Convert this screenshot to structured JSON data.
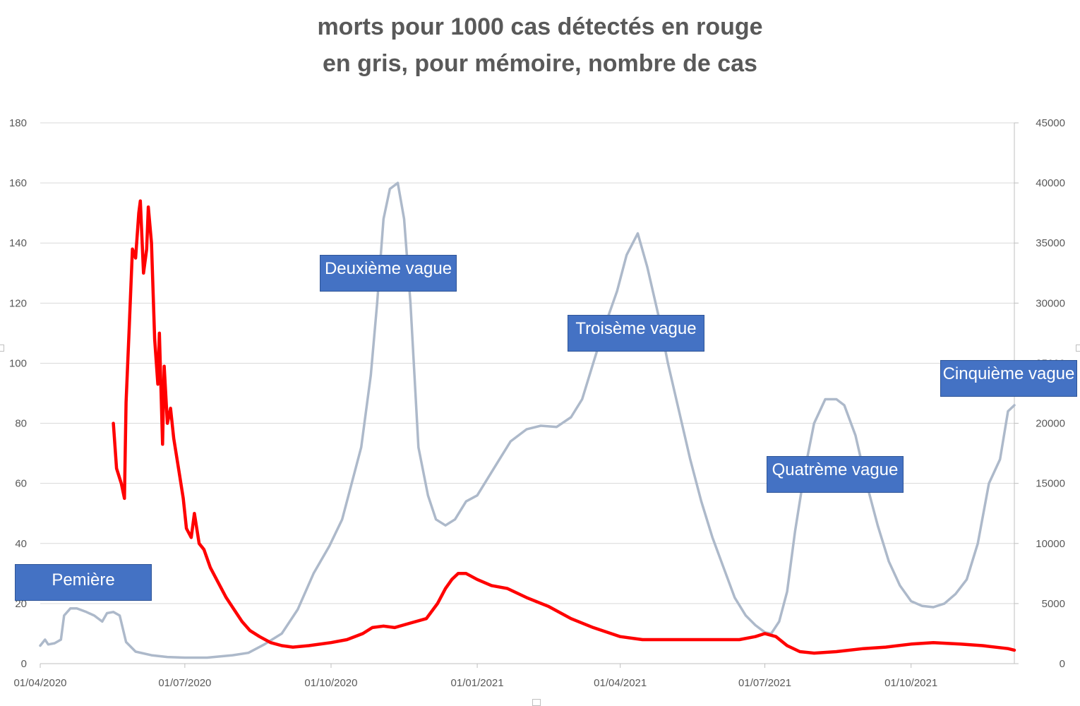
{
  "chart_data": {
    "type": "line",
    "title": "morts pour 1000 cas détectés en rouge",
    "subtitle": "en gris, pour mémoire, nombre de cas",
    "x_tick_labels": [
      "01/04/2020",
      "01/07/2020",
      "01/10/2020",
      "01/01/2021",
      "01/04/2021",
      "01/07/2021",
      "01/10/2021"
    ],
    "x_range": [
      "2020-04-01",
      "2021-12-05"
    ],
    "y_left": {
      "ylim": [
        0,
        180
      ],
      "ticks": [
        0,
        20,
        40,
        60,
        80,
        100,
        120,
        140,
        160,
        180
      ]
    },
    "y_right": {
      "ylim": [
        0,
        45000
      ],
      "ticks": [
        0,
        5000,
        10000,
        15000,
        20000,
        25000,
        30000,
        35000,
        40000,
        45000
      ]
    },
    "grid": true,
    "series": [
      {
        "color": "#ff0000",
        "axis": "left",
        "points": [
          [
            "2020-05-17",
            80
          ],
          [
            "2020-05-19",
            65
          ],
          [
            "2020-05-22",
            60
          ],
          [
            "2020-05-24",
            55
          ],
          [
            "2020-05-25",
            87
          ],
          [
            "2020-05-27",
            112
          ],
          [
            "2020-05-29",
            138
          ],
          [
            "2020-05-31",
            135
          ],
          [
            "2020-06-02",
            150
          ],
          [
            "2020-06-03",
            154
          ],
          [
            "2020-06-05",
            130
          ],
          [
            "2020-06-07",
            138
          ],
          [
            "2020-06-08",
            152
          ],
          [
            "2020-06-10",
            140
          ],
          [
            "2020-06-12",
            108
          ],
          [
            "2020-06-14",
            93
          ],
          [
            "2020-06-15",
            110
          ],
          [
            "2020-06-17",
            73
          ],
          [
            "2020-06-18",
            99
          ],
          [
            "2020-06-20",
            80
          ],
          [
            "2020-06-22",
            85
          ],
          [
            "2020-06-24",
            75
          ],
          [
            "2020-06-27",
            65
          ],
          [
            "2020-06-30",
            55
          ],
          [
            "2020-07-02",
            45
          ],
          [
            "2020-07-05",
            42
          ],
          [
            "2020-07-07",
            50
          ],
          [
            "2020-07-10",
            40
          ],
          [
            "2020-07-13",
            38
          ],
          [
            "2020-07-17",
            32
          ],
          [
            "2020-07-22",
            27
          ],
          [
            "2020-07-27",
            22
          ],
          [
            "2020-08-01",
            18
          ],
          [
            "2020-08-06",
            14
          ],
          [
            "2020-08-11",
            11
          ],
          [
            "2020-08-17",
            9
          ],
          [
            "2020-08-24",
            7
          ],
          [
            "2020-08-31",
            6
          ],
          [
            "2020-09-07",
            5.5
          ],
          [
            "2020-09-17",
            6
          ],
          [
            "2020-10-01",
            7
          ],
          [
            "2020-10-11",
            8
          ],
          [
            "2020-10-21",
            10
          ],
          [
            "2020-10-27",
            12
          ],
          [
            "2020-11-03",
            12.5
          ],
          [
            "2020-11-10",
            12
          ],
          [
            "2020-11-20",
            13.5
          ],
          [
            "2020-11-30",
            15
          ],
          [
            "2020-12-07",
            20
          ],
          [
            "2020-12-12",
            25
          ],
          [
            "2020-12-16",
            28
          ],
          [
            "2020-12-20",
            30
          ],
          [
            "2020-12-25",
            30
          ],
          [
            "2021-01-01",
            28
          ],
          [
            "2021-01-10",
            26
          ],
          [
            "2021-01-20",
            25
          ],
          [
            "2021-02-01",
            22
          ],
          [
            "2021-02-15",
            19
          ],
          [
            "2021-03-01",
            15
          ],
          [
            "2021-03-15",
            12
          ],
          [
            "2021-04-01",
            9
          ],
          [
            "2021-04-15",
            8
          ],
          [
            "2021-05-01",
            8
          ],
          [
            "2021-05-15",
            8
          ],
          [
            "2021-06-01",
            8
          ],
          [
            "2021-06-15",
            8
          ],
          [
            "2021-06-25",
            9
          ],
          [
            "2021-07-01",
            10
          ],
          [
            "2021-07-08",
            9
          ],
          [
            "2021-07-15",
            6
          ],
          [
            "2021-07-23",
            4
          ],
          [
            "2021-08-01",
            3.5
          ],
          [
            "2021-08-15",
            4
          ],
          [
            "2021-09-01",
            5
          ],
          [
            "2021-09-15",
            5.5
          ],
          [
            "2021-10-01",
            6.5
          ],
          [
            "2021-10-15",
            7
          ],
          [
            "2021-11-01",
            6.5
          ],
          [
            "2021-11-15",
            6
          ],
          [
            "2021-12-01",
            5
          ],
          [
            "2021-12-05",
            4.5
          ]
        ]
      },
      {
        "color": "#adb9ca",
        "axis": "right",
        "points": [
          [
            "2020-04-01",
            1500
          ],
          [
            "2020-04-04",
            2000
          ],
          [
            "2020-04-06",
            1600
          ],
          [
            "2020-04-10",
            1700
          ],
          [
            "2020-04-14",
            2000
          ],
          [
            "2020-04-16",
            4000
          ],
          [
            "2020-04-20",
            4600
          ],
          [
            "2020-04-24",
            4600
          ],
          [
            "2020-04-30",
            4300
          ],
          [
            "2020-05-05",
            4000
          ],
          [
            "2020-05-10",
            3500
          ],
          [
            "2020-05-13",
            4200
          ],
          [
            "2020-05-17",
            4300
          ],
          [
            "2020-05-21",
            4000
          ],
          [
            "2020-05-25",
            1800
          ],
          [
            "2020-05-31",
            1000
          ],
          [
            "2020-06-10",
            700
          ],
          [
            "2020-06-20",
            550
          ],
          [
            "2020-07-01",
            500
          ],
          [
            "2020-07-15",
            500
          ],
          [
            "2020-07-31",
            700
          ],
          [
            "2020-08-10",
            900
          ],
          [
            "2020-08-20",
            1600
          ],
          [
            "2020-08-31",
            2500
          ],
          [
            "2020-09-10",
            4500
          ],
          [
            "2020-09-20",
            7500
          ],
          [
            "2020-09-30",
            9800
          ],
          [
            "2020-10-08",
            12000
          ],
          [
            "2020-10-14",
            15000
          ],
          [
            "2020-10-20",
            18000
          ],
          [
            "2020-10-26",
            24000
          ],
          [
            "2020-10-30",
            30000
          ],
          [
            "2020-11-03",
            37000
          ],
          [
            "2020-11-07",
            39500
          ],
          [
            "2020-11-12",
            40000
          ],
          [
            "2020-11-16",
            37000
          ],
          [
            "2020-11-20",
            30000
          ],
          [
            "2020-11-25",
            18000
          ],
          [
            "2020-12-01",
            14000
          ],
          [
            "2020-12-06",
            12000
          ],
          [
            "2020-12-12",
            11500
          ],
          [
            "2020-12-18",
            12000
          ],
          [
            "2020-12-25",
            13500
          ],
          [
            "2021-01-01",
            14000
          ],
          [
            "2021-01-08",
            15500
          ],
          [
            "2021-01-15",
            17000
          ],
          [
            "2021-01-22",
            18500
          ],
          [
            "2021-02-01",
            19500
          ],
          [
            "2021-02-10",
            19800
          ],
          [
            "2021-02-20",
            19700
          ],
          [
            "2021-03-01",
            20500
          ],
          [
            "2021-03-08",
            22000
          ],
          [
            "2021-03-15",
            25000
          ],
          [
            "2021-03-22",
            28000
          ],
          [
            "2021-03-30",
            31000
          ],
          [
            "2021-04-05",
            34000
          ],
          [
            "2021-04-12",
            35800
          ],
          [
            "2021-04-18",
            33000
          ],
          [
            "2021-04-25",
            29000
          ],
          [
            "2021-05-01",
            25000
          ],
          [
            "2021-05-08",
            21000
          ],
          [
            "2021-05-15",
            17000
          ],
          [
            "2021-05-22",
            13500
          ],
          [
            "2021-05-29",
            10500
          ],
          [
            "2021-06-05",
            8000
          ],
          [
            "2021-06-12",
            5500
          ],
          [
            "2021-06-19",
            4000
          ],
          [
            "2021-06-25",
            3200
          ],
          [
            "2021-07-01",
            2600
          ],
          [
            "2021-07-05",
            2500
          ],
          [
            "2021-07-10",
            3500
          ],
          [
            "2021-07-15",
            6000
          ],
          [
            "2021-07-20",
            11000
          ],
          [
            "2021-07-26",
            16000
          ],
          [
            "2021-08-01",
            20000
          ],
          [
            "2021-08-08",
            22000
          ],
          [
            "2021-08-15",
            22000
          ],
          [
            "2021-08-20",
            21500
          ],
          [
            "2021-08-27",
            19000
          ],
          [
            "2021-09-03",
            15000
          ],
          [
            "2021-09-10",
            11500
          ],
          [
            "2021-09-17",
            8500
          ],
          [
            "2021-09-24",
            6500
          ],
          [
            "2021-10-01",
            5200
          ],
          [
            "2021-10-08",
            4800
          ],
          [
            "2021-10-15",
            4700
          ],
          [
            "2021-10-22",
            5000
          ],
          [
            "2021-10-29",
            5800
          ],
          [
            "2021-11-05",
            7000
          ],
          [
            "2021-11-12",
            10000
          ],
          [
            "2021-11-19",
            15000
          ],
          [
            "2021-11-26",
            17000
          ],
          [
            "2021-12-01",
            21000
          ],
          [
            "2021-12-05",
            21500
          ]
        ]
      }
    ],
    "annotations": [
      {
        "text": "Pemière",
        "x": "2020-04-28",
        "y": 27
      },
      {
        "text": "Deuxième vague",
        "x": "2020-11-06",
        "y": 130
      },
      {
        "text": "Troisème vague",
        "x": "2021-04-11",
        "y": 110
      },
      {
        "text": "Quatrème vague",
        "x": "2021-08-14",
        "y": 63
      },
      {
        "text": "Cinquième vague",
        "x": "2021-12-05",
        "y": 95
      }
    ]
  }
}
